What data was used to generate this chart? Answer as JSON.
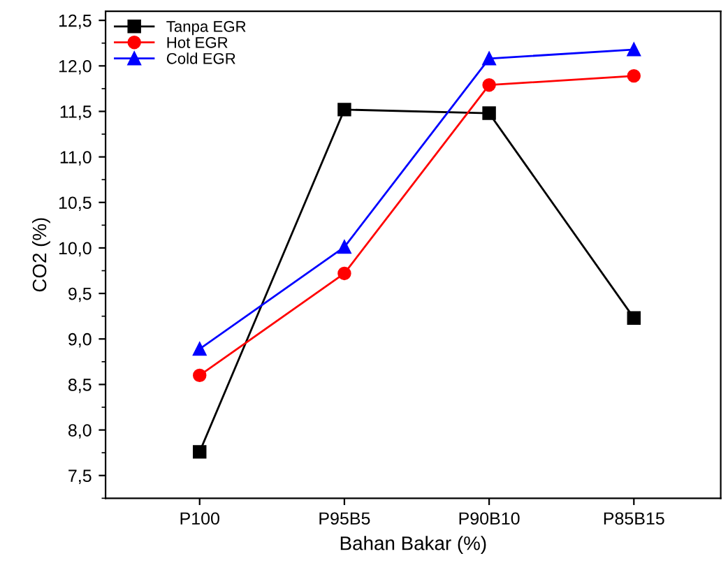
{
  "chart_data": {
    "type": "line",
    "xlabel": "Bahan Bakar (%)",
    "ylabel": "CO2 (%)",
    "categories": [
      "P100",
      "P95B5",
      "P90B10",
      "P85B15"
    ],
    "series": [
      {
        "name": "Tanpa EGR",
        "color": "#000000",
        "marker": "square",
        "values": [
          7.76,
          11.52,
          11.48,
          9.23
        ]
      },
      {
        "name": "Hot EGR",
        "color": "#ff0000",
        "marker": "circle",
        "values": [
          8.6,
          9.72,
          11.79,
          11.89
        ]
      },
      {
        "name": "Cold EGR",
        "color": "#0000ff",
        "marker": "triangle",
        "values": [
          8.89,
          10.01,
          12.08,
          12.18
        ]
      }
    ],
    "ylim": [
      7.25,
      12.6
    ],
    "yticks": [
      {
        "value": 7.5,
        "label": "7,5"
      },
      {
        "value": 8.0,
        "label": "8,0"
      },
      {
        "value": 8.5,
        "label": "8,5"
      },
      {
        "value": 9.0,
        "label": "9,0"
      },
      {
        "value": 9.5,
        "label": "9,5"
      },
      {
        "value": 10.0,
        "label": "10,0"
      },
      {
        "value": 10.5,
        "label": "10,5"
      },
      {
        "value": 11.0,
        "label": "11,0"
      },
      {
        "value": 11.5,
        "label": "11,5"
      },
      {
        "value": 12.0,
        "label": "12,0"
      },
      {
        "value": 12.5,
        "label": "12,5"
      }
    ],
    "grid": false,
    "legend": "top left",
    "line_style": "solid"
  }
}
